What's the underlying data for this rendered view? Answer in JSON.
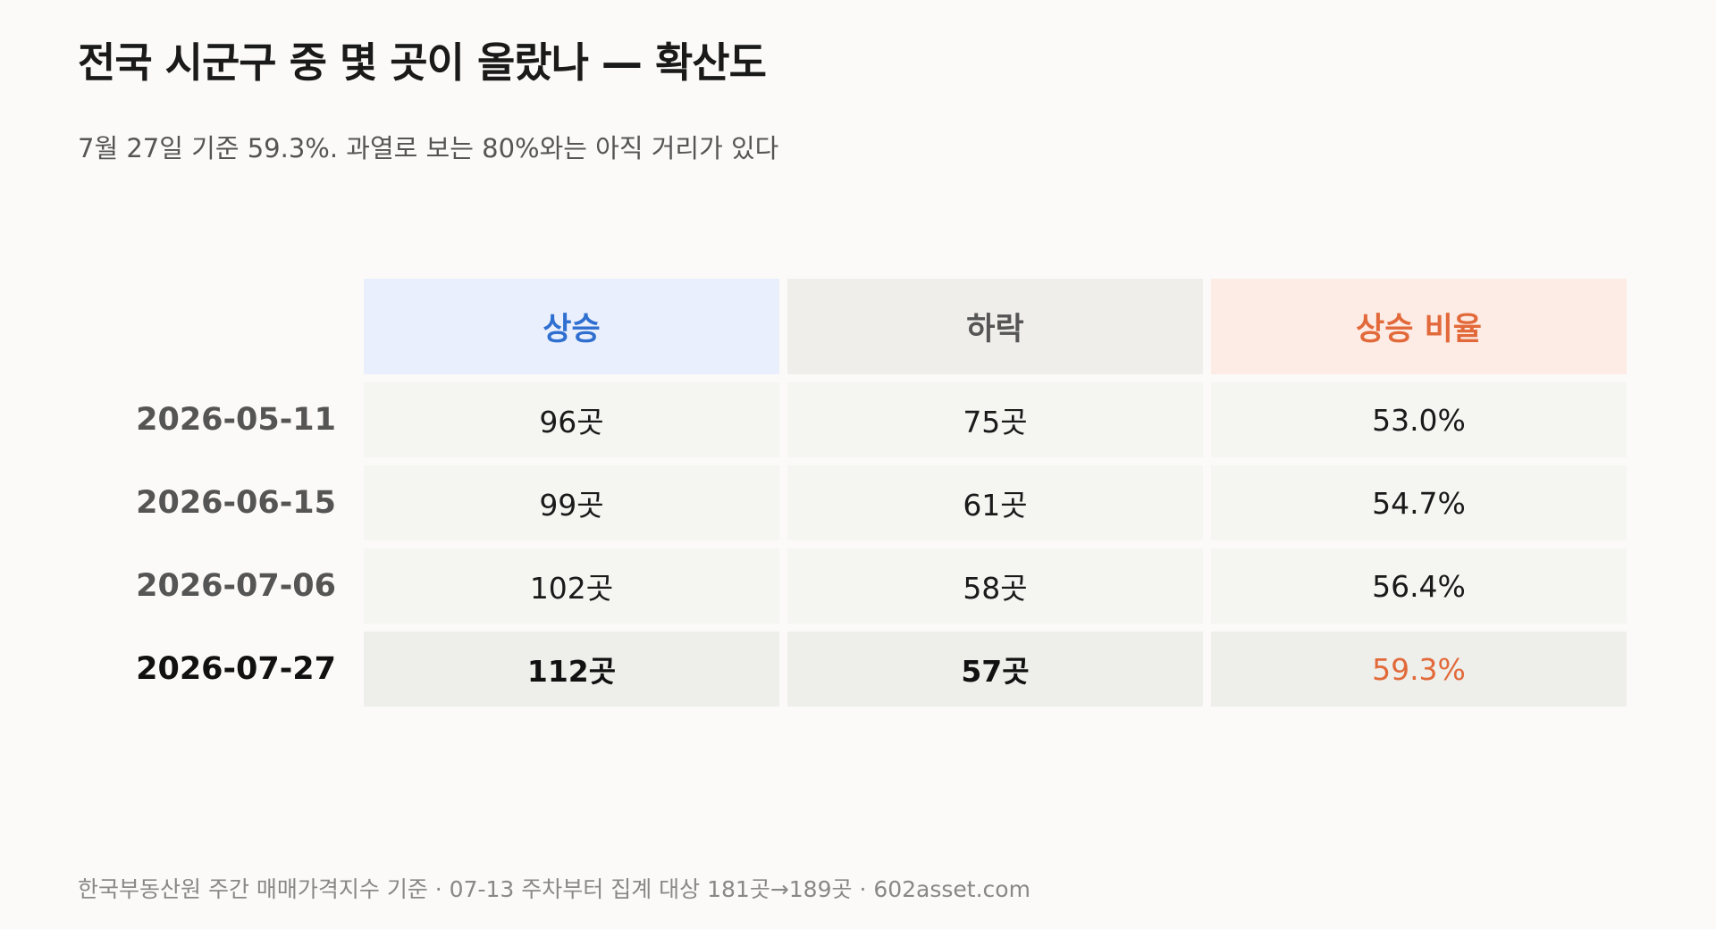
{
  "header": {
    "title": "전국 시군구 중 몇 곳이 올랐나 — 확산도",
    "subtitle": "7월 27일 기준 59.3%. 과열로 보는 80%와는 아직 거리가 있다"
  },
  "table": {
    "columns": [
      "상승",
      "하락",
      "상승 비율"
    ],
    "rows": [
      [
        "2026-05-11",
        "96곳",
        "75곳",
        "53.0%"
      ],
      [
        "2026-06-15",
        "99곳",
        "61곳",
        "54.7%"
      ],
      [
        "2026-07-06",
        "102곳",
        "58곳",
        "56.4%"
      ],
      [
        "2026-07-27",
        "112곳",
        "57곳",
        "59.3%"
      ]
    ]
  },
  "footer": "한국부동산원 주간 매매가격지수 기준 · 07-13 주차부터 집계 대상 181곳→189곳 · 602asset.com"
}
